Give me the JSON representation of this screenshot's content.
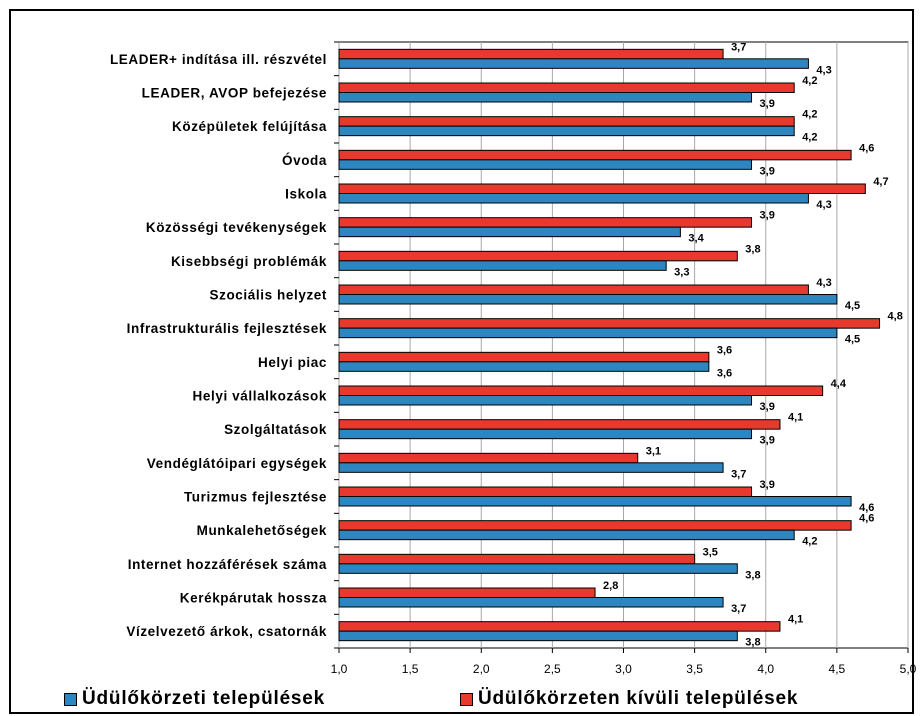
{
  "chart_data": {
    "type": "bar",
    "orientation": "horizontal",
    "categories": [
      "LEADER+ indítása ill. részvétel",
      "LEADER, AVOP befejezése",
      "Középületek felújítása",
      "Óvoda",
      "Iskola",
      "Közösségi tevékenységek",
      "Kisebbségi problémák",
      "Szociális helyzet",
      "Infrastrukturális fejlesztések",
      "Helyi piac",
      "Helyi vállalkozások",
      "Szolgáltatások",
      "Vendéglátóipari egységek",
      "Turizmus fejlesztése",
      "Munkalehetőségek",
      "Internet hozzáférések száma",
      "Kerékpárutak hossza",
      "Vízelvezető árkok, csatornák"
    ],
    "series": [
      {
        "name": "Üdülőkörzeten kívüli települések",
        "color": "#e8392f",
        "values": [
          3.7,
          4.2,
          4.2,
          4.6,
          4.7,
          3.9,
          3.8,
          4.3,
          4.8,
          3.6,
          4.4,
          4.1,
          3.1,
          3.9,
          4.6,
          3.5,
          2.8,
          4.1
        ],
        "labels": [
          "3,7",
          "4,2",
          "4,2",
          "4,6",
          "4,7",
          "3,9",
          "3,8",
          "4,3",
          "4,8",
          "3,6",
          "4,4",
          "4,1",
          "3,1",
          "3,9",
          "4,6",
          "3,5",
          "2,8",
          "4,1"
        ]
      },
      {
        "name": "Üdülőkörzeti települések",
        "color": "#2e86c1",
        "values": [
          4.3,
          3.9,
          4.2,
          3.9,
          4.3,
          3.4,
          3.3,
          4.5,
          4.5,
          3.6,
          3.9,
          3.9,
          3.7,
          4.6,
          4.2,
          3.8,
          3.7,
          3.8
        ],
        "labels": [
          "4,3",
          "3,9",
          "4,2",
          "3,9",
          "4,3",
          "3,4",
          "3,3",
          "4,5",
          "4,5",
          "3,6",
          "3,9",
          "3,9",
          "3,7",
          "4,6",
          "4,2",
          "3,8",
          "3,7",
          "3,8"
        ]
      }
    ],
    "xlim": [
      1.0,
      5.0
    ],
    "xticks": [
      "1,0",
      "1,5",
      "2,0",
      "2,5",
      "3,0",
      "3,5",
      "4,0",
      "4,5",
      "5,0"
    ],
    "grid": "vertical",
    "legend": {
      "position": "bottom",
      "items": [
        "Üdülőkörzeti települések",
        "Üdülőkörzeten kívüli települések"
      ]
    }
  }
}
